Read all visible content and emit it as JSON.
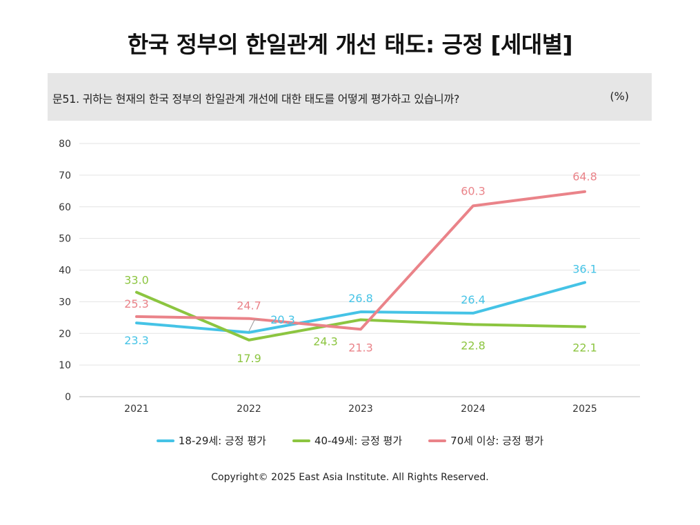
{
  "title": "한국 정부의 한일관계 개선 태도: 긍정 [세대별]",
  "question": "문51. 귀하는 현재의 한국 정부의 한일관계 개선에 대한 태도를 어떻게 평가하고 있습니까?",
  "unit": "(%)",
  "copyright": "Copyright© 2025 East Asia Institute. All Rights Reserved.",
  "chart_data": {
    "type": "line",
    "categories": [
      "2021",
      "2022",
      "2023",
      "2024",
      "2025"
    ],
    "ylim": [
      0,
      80
    ],
    "yticks": [
      "0",
      "10",
      "20",
      "30",
      "40",
      "50",
      "60",
      "70",
      "80"
    ],
    "grid": true,
    "legend_position": "bottom",
    "series": [
      {
        "name": "18-29세: 긍정 평가",
        "color": "#45c3e6",
        "values": [
          23.3,
          20.3,
          26.8,
          26.4,
          36.1
        ],
        "labels": [
          "23.3",
          "20.3",
          "26.8",
          "26.4",
          "36.1"
        ]
      },
      {
        "name": "40-49세: 긍정 평가",
        "color": "#8cc540",
        "values": [
          33.0,
          17.9,
          24.3,
          22.8,
          22.1
        ],
        "labels": [
          "33.0",
          "17.9",
          "24.3",
          "22.8",
          "22.1"
        ]
      },
      {
        "name": "70세 이상: 긍정 평가",
        "color": "#ea8389",
        "values": [
          25.3,
          24.7,
          21.3,
          60.3,
          64.8
        ],
        "labels": [
          "25.3",
          "24.7",
          "21.3",
          "60.3",
          "64.8"
        ]
      }
    ]
  }
}
